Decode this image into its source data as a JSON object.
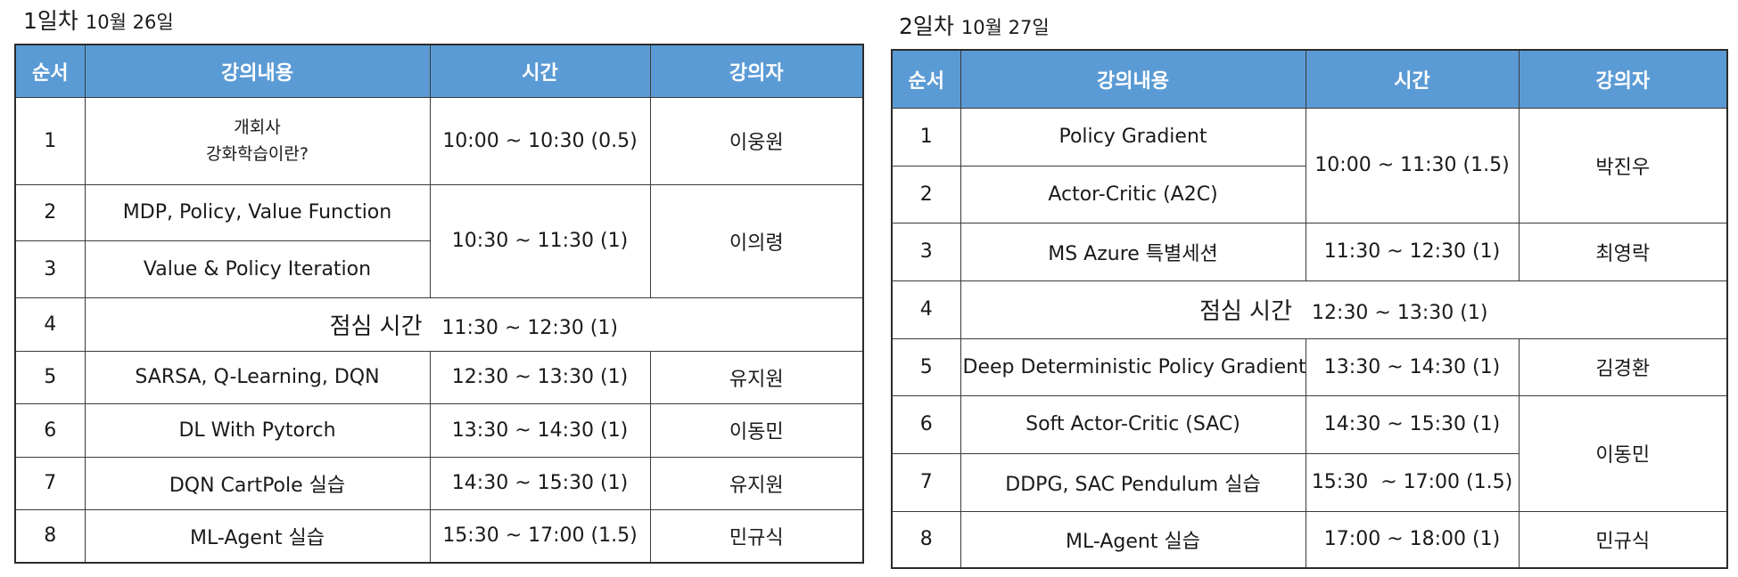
{
  "day1": {
    "title": "1일차",
    "date": "10월 26일",
    "headers": [
      "순서",
      "강의내용",
      "시간",
      "강의자"
    ],
    "rows": [
      {
        "no": "1",
        "content": [
          "개회사",
          "강화학습이란?"
        ],
        "time": "10:00 ~ 10:30 (0.5)",
        "lecturer": "이웅원"
      },
      {
        "no": "2",
        "content": "MDP, Policy, Value Function",
        "time": "10:30 ~ 11:30 (1)",
        "lecturer": "이의령"
      },
      {
        "no": "3",
        "content": "Value & Policy Iteration"
      },
      {
        "no": "4",
        "lunch_label": "점심 시간",
        "lunch_time": "11:30 ~ 12:30 (1)"
      },
      {
        "no": "5",
        "content": "SARSA, Q-Learning, DQN",
        "time": "12:30 ~ 13:30 (1)",
        "lecturer": "유지원"
      },
      {
        "no": "6",
        "content": "DL With Pytorch",
        "time": "13:30 ~ 14:30 (1)",
        "lecturer": "이동민"
      },
      {
        "no": "7",
        "content": "DQN CartPole 실습",
        "time": "14:30 ~ 15:30 (1)",
        "lecturer": "유지원"
      },
      {
        "no": "8",
        "content": "ML-Agent 실습",
        "time": "15:30 ~ 17:00 (1.5)",
        "lecturer": "민규식"
      }
    ]
  },
  "day2": {
    "title": "2일차",
    "date": "10월 27일",
    "headers": [
      "순서",
      "강의내용",
      "시간",
      "강의자"
    ],
    "rows": [
      {
        "no": "1",
        "content": "Policy Gradient",
        "time": "10:00 ~ 11:30 (1.5)",
        "lecturer": "박진우"
      },
      {
        "no": "2",
        "content": "Actor-Critic (A2C)"
      },
      {
        "no": "3",
        "content": "MS Azure 특별세션",
        "time": "11:30 ~ 12:30 (1)",
        "lecturer": "최영락"
      },
      {
        "no": "4",
        "lunch_label": "점심 시간",
        "lunch_time": "12:30 ~ 13:30 (1)"
      },
      {
        "no": "5",
        "content": "Deep Deterministic Policy Gradient",
        "time": "13:30 ~ 14:30 (1)",
        "lecturer": "김경환"
      },
      {
        "no": "6",
        "content": "Soft Actor-Critic (SAC)",
        "time": "14:30 ~ 15:30 (1)",
        "lecturer": "이동민"
      },
      {
        "no": "7",
        "content": "DDPG, SAC Pendulum 실습",
        "time": "15:30  ~ 17:00 (1.5)"
      },
      {
        "no": "8",
        "content": "ML-Agent 실습",
        "time": "17:00 ~ 18:00 (1)",
        "lecturer": "민규식"
      }
    ]
  }
}
